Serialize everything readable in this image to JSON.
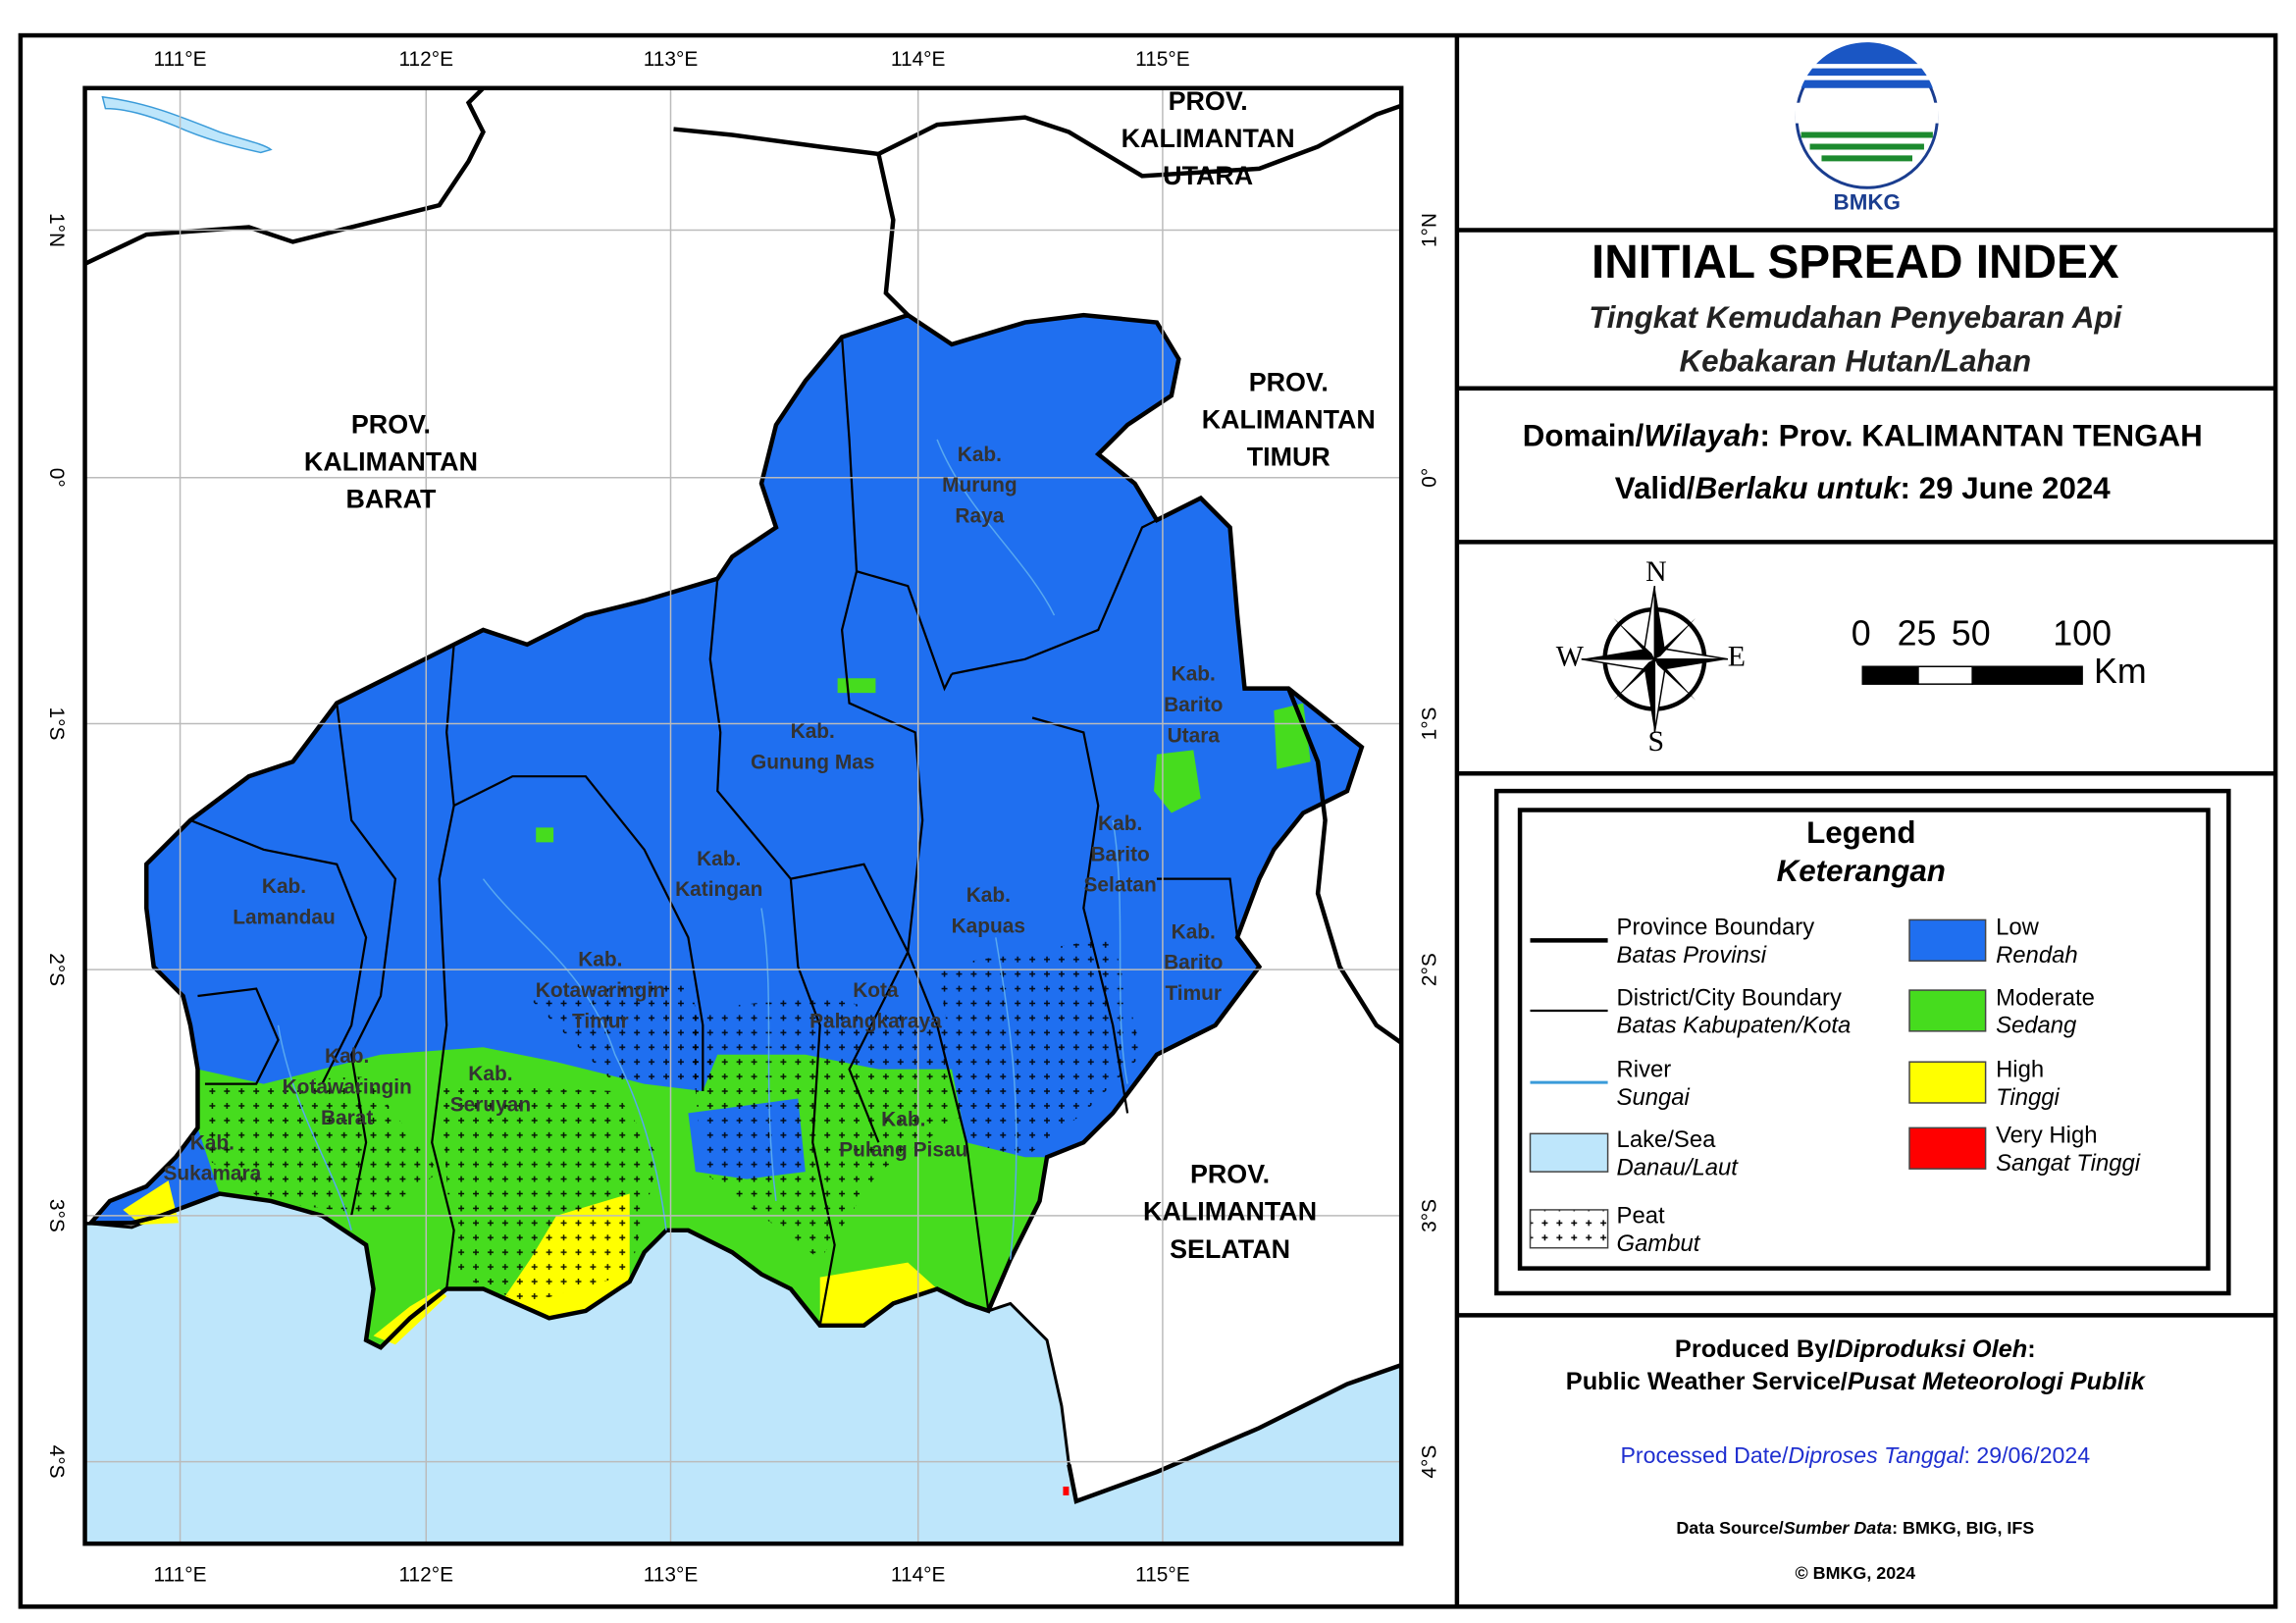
{
  "map": {
    "lon_labels": [
      "111°E",
      "112°E",
      "113°E",
      "114°E",
      "115°E"
    ],
    "lat_labels": [
      "1°N",
      "0°",
      "1°S",
      "2°S",
      "3°S",
      "4°S"
    ],
    "provinces": [
      {
        "lines": [
          "PROV.",
          "KALIMANTAN",
          "UTARA"
        ]
      },
      {
        "lines": [
          "PROV.",
          "KALIMANTAN",
          "BARAT"
        ]
      },
      {
        "lines": [
          "PROV.",
          "KALIMANTAN",
          "TIMUR"
        ]
      },
      {
        "lines": [
          "PROV.",
          "KALIMANTAN",
          "SELATAN"
        ]
      }
    ],
    "districts": [
      {
        "lines": [
          "Kab.",
          "Murung",
          "Raya"
        ]
      },
      {
        "lines": [
          "Kab.",
          "Gunung Mas"
        ]
      },
      {
        "lines": [
          "Kab.",
          "Barito",
          "Utara"
        ]
      },
      {
        "lines": [
          "Kab.",
          "Katingan"
        ]
      },
      {
        "lines": [
          "Kab.",
          "Kapuas"
        ]
      },
      {
        "lines": [
          "Kab.",
          "Barito",
          "Selatan"
        ]
      },
      {
        "lines": [
          "Kab.",
          "Barito",
          "Timur"
        ]
      },
      {
        "lines": [
          "Kab.",
          "Lamandau"
        ]
      },
      {
        "lines": [
          "Kab.",
          "Kotawaringin",
          "Timur"
        ]
      },
      {
        "lines": [
          "Kota",
          "Palangkaraya"
        ]
      },
      {
        "lines": [
          "Kab.",
          "Kotawaringin",
          "Barat"
        ]
      },
      {
        "lines": [
          "Kab.",
          "Seruyan"
        ]
      },
      {
        "lines": [
          "Kab.",
          "Pulang Pisau"
        ]
      },
      {
        "lines": [
          "Kab.",
          "Sukamara"
        ]
      }
    ]
  },
  "header": {
    "logo_text": "BMKG",
    "title": "INITIAL SPREAD INDEX",
    "subtitle_lines": [
      "Tingkat Kemudahan Penyebaran Api",
      "Kebakaran Hutan/Lahan"
    ]
  },
  "info": {
    "domain": [
      "Domain/",
      "Wilayah",
      ": Prov. KALIMANTAN TENGAH"
    ],
    "valid": [
      "Valid/",
      "Berlaku untuk",
      ": 29 June 2024"
    ]
  },
  "compass": {
    "n": "N",
    "s": "S",
    "e": "E",
    "w": "W"
  },
  "scale": {
    "labels": [
      "0",
      "25",
      "50",
      "100"
    ],
    "unit": "Km"
  },
  "legend": {
    "title": "Legend",
    "subtitle": "Keterangan",
    "lines": [
      {
        "label": "Province Boundary",
        "sublabel": "Batas Provinsi"
      },
      {
        "label": "District/City Boundary",
        "sublabel": "Batas Kabupaten/Kota"
      },
      {
        "label": "River",
        "sublabel": "Sungai"
      },
      {
        "label": "Lake/Sea",
        "sublabel": "Danau/Laut"
      },
      {
        "label": "Peat",
        "sublabel": "Gambut"
      }
    ],
    "classes": [
      {
        "label": "Low",
        "sublabel": "Rendah",
        "color": "#1f6ff0"
      },
      {
        "label": "Moderate",
        "sublabel": "Sedang",
        "color": "#46dc1e"
      },
      {
        "label": "High",
        "sublabel": "Tinggi",
        "color": "#ffff00"
      },
      {
        "label": "Very High",
        "sublabel": "Sangat Tinggi",
        "color": "#ff0000"
      }
    ]
  },
  "footer": {
    "produced": [
      "Produced By/",
      "Diproduksi Oleh",
      ":"
    ],
    "service": [
      "Public Weather Service/",
      "Pusat Meteorologi Publik"
    ],
    "processed": [
      "Processed Date/",
      "Diproses Tanggal",
      ": 29/06/2024"
    ],
    "source": [
      "Data Source/",
      "Sumber Data",
      ": BMKG, BIG, IFS"
    ],
    "copyright": "© BMKG, 2024"
  }
}
